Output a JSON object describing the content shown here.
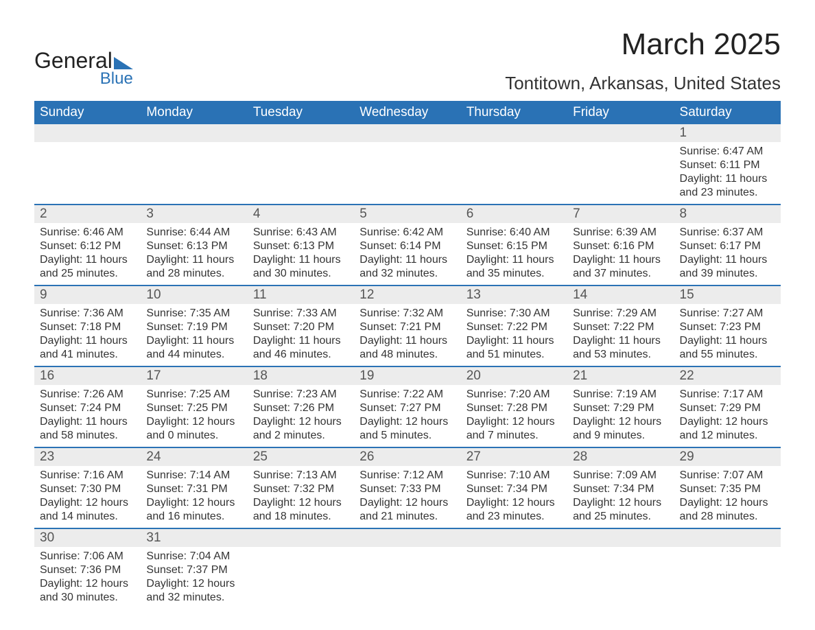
{
  "brand": {
    "line1": "General",
    "line2": "Blue"
  },
  "title": "March 2025",
  "location": "Tontitown, Arkansas, United States",
  "weekdays": [
    "Sunday",
    "Monday",
    "Tuesday",
    "Wednesday",
    "Thursday",
    "Friday",
    "Saturday"
  ],
  "colors": {
    "header_bg": "#2a72b5",
    "daynum_bg": "#ececec",
    "text": "#333333",
    "accent": "#2a72b5"
  },
  "typography": {
    "title_fontsize": 44,
    "location_fontsize": 26,
    "weekday_fontsize": 19,
    "daynum_fontsize": 19,
    "content_fontsize": 16
  },
  "labels": {
    "sunrise": "Sunrise:",
    "sunset": "Sunset:",
    "daylight": "Daylight:"
  },
  "weeks": [
    [
      {
        "num": "",
        "sunrise": "",
        "sunset": "",
        "dl1": "",
        "dl2": ""
      },
      {
        "num": "",
        "sunrise": "",
        "sunset": "",
        "dl1": "",
        "dl2": ""
      },
      {
        "num": "",
        "sunrise": "",
        "sunset": "",
        "dl1": "",
        "dl2": ""
      },
      {
        "num": "",
        "sunrise": "",
        "sunset": "",
        "dl1": "",
        "dl2": ""
      },
      {
        "num": "",
        "sunrise": "",
        "sunset": "",
        "dl1": "",
        "dl2": ""
      },
      {
        "num": "",
        "sunrise": "",
        "sunset": "",
        "dl1": "",
        "dl2": ""
      },
      {
        "num": "1",
        "sunrise": "Sunrise: 6:47 AM",
        "sunset": "Sunset: 6:11 PM",
        "dl1": "Daylight: 11 hours",
        "dl2": "and 23 minutes."
      }
    ],
    [
      {
        "num": "2",
        "sunrise": "Sunrise: 6:46 AM",
        "sunset": "Sunset: 6:12 PM",
        "dl1": "Daylight: 11 hours",
        "dl2": "and 25 minutes."
      },
      {
        "num": "3",
        "sunrise": "Sunrise: 6:44 AM",
        "sunset": "Sunset: 6:13 PM",
        "dl1": "Daylight: 11 hours",
        "dl2": "and 28 minutes."
      },
      {
        "num": "4",
        "sunrise": "Sunrise: 6:43 AM",
        "sunset": "Sunset: 6:13 PM",
        "dl1": "Daylight: 11 hours",
        "dl2": "and 30 minutes."
      },
      {
        "num": "5",
        "sunrise": "Sunrise: 6:42 AM",
        "sunset": "Sunset: 6:14 PM",
        "dl1": "Daylight: 11 hours",
        "dl2": "and 32 minutes."
      },
      {
        "num": "6",
        "sunrise": "Sunrise: 6:40 AM",
        "sunset": "Sunset: 6:15 PM",
        "dl1": "Daylight: 11 hours",
        "dl2": "and 35 minutes."
      },
      {
        "num": "7",
        "sunrise": "Sunrise: 6:39 AM",
        "sunset": "Sunset: 6:16 PM",
        "dl1": "Daylight: 11 hours",
        "dl2": "and 37 minutes."
      },
      {
        "num": "8",
        "sunrise": "Sunrise: 6:37 AM",
        "sunset": "Sunset: 6:17 PM",
        "dl1": "Daylight: 11 hours",
        "dl2": "and 39 minutes."
      }
    ],
    [
      {
        "num": "9",
        "sunrise": "Sunrise: 7:36 AM",
        "sunset": "Sunset: 7:18 PM",
        "dl1": "Daylight: 11 hours",
        "dl2": "and 41 minutes."
      },
      {
        "num": "10",
        "sunrise": "Sunrise: 7:35 AM",
        "sunset": "Sunset: 7:19 PM",
        "dl1": "Daylight: 11 hours",
        "dl2": "and 44 minutes."
      },
      {
        "num": "11",
        "sunrise": "Sunrise: 7:33 AM",
        "sunset": "Sunset: 7:20 PM",
        "dl1": "Daylight: 11 hours",
        "dl2": "and 46 minutes."
      },
      {
        "num": "12",
        "sunrise": "Sunrise: 7:32 AM",
        "sunset": "Sunset: 7:21 PM",
        "dl1": "Daylight: 11 hours",
        "dl2": "and 48 minutes."
      },
      {
        "num": "13",
        "sunrise": "Sunrise: 7:30 AM",
        "sunset": "Sunset: 7:22 PM",
        "dl1": "Daylight: 11 hours",
        "dl2": "and 51 minutes."
      },
      {
        "num": "14",
        "sunrise": "Sunrise: 7:29 AM",
        "sunset": "Sunset: 7:22 PM",
        "dl1": "Daylight: 11 hours",
        "dl2": "and 53 minutes."
      },
      {
        "num": "15",
        "sunrise": "Sunrise: 7:27 AM",
        "sunset": "Sunset: 7:23 PM",
        "dl1": "Daylight: 11 hours",
        "dl2": "and 55 minutes."
      }
    ],
    [
      {
        "num": "16",
        "sunrise": "Sunrise: 7:26 AM",
        "sunset": "Sunset: 7:24 PM",
        "dl1": "Daylight: 11 hours",
        "dl2": "and 58 minutes."
      },
      {
        "num": "17",
        "sunrise": "Sunrise: 7:25 AM",
        "sunset": "Sunset: 7:25 PM",
        "dl1": "Daylight: 12 hours",
        "dl2": "and 0 minutes."
      },
      {
        "num": "18",
        "sunrise": "Sunrise: 7:23 AM",
        "sunset": "Sunset: 7:26 PM",
        "dl1": "Daylight: 12 hours",
        "dl2": "and 2 minutes."
      },
      {
        "num": "19",
        "sunrise": "Sunrise: 7:22 AM",
        "sunset": "Sunset: 7:27 PM",
        "dl1": "Daylight: 12 hours",
        "dl2": "and 5 minutes."
      },
      {
        "num": "20",
        "sunrise": "Sunrise: 7:20 AM",
        "sunset": "Sunset: 7:28 PM",
        "dl1": "Daylight: 12 hours",
        "dl2": "and 7 minutes."
      },
      {
        "num": "21",
        "sunrise": "Sunrise: 7:19 AM",
        "sunset": "Sunset: 7:29 PM",
        "dl1": "Daylight: 12 hours",
        "dl2": "and 9 minutes."
      },
      {
        "num": "22",
        "sunrise": "Sunrise: 7:17 AM",
        "sunset": "Sunset: 7:29 PM",
        "dl1": "Daylight: 12 hours",
        "dl2": "and 12 minutes."
      }
    ],
    [
      {
        "num": "23",
        "sunrise": "Sunrise: 7:16 AM",
        "sunset": "Sunset: 7:30 PM",
        "dl1": "Daylight: 12 hours",
        "dl2": "and 14 minutes."
      },
      {
        "num": "24",
        "sunrise": "Sunrise: 7:14 AM",
        "sunset": "Sunset: 7:31 PM",
        "dl1": "Daylight: 12 hours",
        "dl2": "and 16 minutes."
      },
      {
        "num": "25",
        "sunrise": "Sunrise: 7:13 AM",
        "sunset": "Sunset: 7:32 PM",
        "dl1": "Daylight: 12 hours",
        "dl2": "and 18 minutes."
      },
      {
        "num": "26",
        "sunrise": "Sunrise: 7:12 AM",
        "sunset": "Sunset: 7:33 PM",
        "dl1": "Daylight: 12 hours",
        "dl2": "and 21 minutes."
      },
      {
        "num": "27",
        "sunrise": "Sunrise: 7:10 AM",
        "sunset": "Sunset: 7:34 PM",
        "dl1": "Daylight: 12 hours",
        "dl2": "and 23 minutes."
      },
      {
        "num": "28",
        "sunrise": "Sunrise: 7:09 AM",
        "sunset": "Sunset: 7:34 PM",
        "dl1": "Daylight: 12 hours",
        "dl2": "and 25 minutes."
      },
      {
        "num": "29",
        "sunrise": "Sunrise: 7:07 AM",
        "sunset": "Sunset: 7:35 PM",
        "dl1": "Daylight: 12 hours",
        "dl2": "and 28 minutes."
      }
    ],
    [
      {
        "num": "30",
        "sunrise": "Sunrise: 7:06 AM",
        "sunset": "Sunset: 7:36 PM",
        "dl1": "Daylight: 12 hours",
        "dl2": "and 30 minutes."
      },
      {
        "num": "31",
        "sunrise": "Sunrise: 7:04 AM",
        "sunset": "Sunset: 7:37 PM",
        "dl1": "Daylight: 12 hours",
        "dl2": "and 32 minutes."
      },
      {
        "num": "",
        "sunrise": "",
        "sunset": "",
        "dl1": "",
        "dl2": ""
      },
      {
        "num": "",
        "sunrise": "",
        "sunset": "",
        "dl1": "",
        "dl2": ""
      },
      {
        "num": "",
        "sunrise": "",
        "sunset": "",
        "dl1": "",
        "dl2": ""
      },
      {
        "num": "",
        "sunrise": "",
        "sunset": "",
        "dl1": "",
        "dl2": ""
      },
      {
        "num": "",
        "sunrise": "",
        "sunset": "",
        "dl1": "",
        "dl2": ""
      }
    ]
  ]
}
